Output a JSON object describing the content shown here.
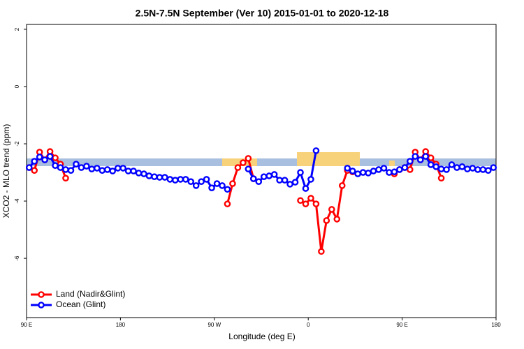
{
  "chart_data": {
    "type": "line",
    "title": "2.5N-7.5N September (Ver 10)   2015-01-01 to 2020-12-18",
    "x_label": "Longitude (deg E)",
    "y_label": "XCO2 - MLO trend (ppm)",
    "x": [
      92.5,
      97.5,
      102.5,
      107.5,
      112.5,
      117.5,
      122.5,
      127.5,
      132.5,
      137.5,
      142.5,
      147.5,
      152.5,
      157.5,
      162.5,
      167.5,
      172.5,
      177.5,
      182.5,
      187.5,
      192.5,
      197.5,
      202.5,
      207.5,
      212.5,
      217.5,
      222.5,
      227.5,
      232.5,
      237.5,
      242.5,
      247.5,
      252.5,
      257.5,
      262.5,
      267.5,
      272.5,
      277.5,
      282.5,
      287.5,
      292.5,
      297.5,
      302.5,
      307.5,
      312.5,
      317.5,
      322.5,
      327.5,
      332.5,
      337.5,
      342.5,
      347.5,
      352.5,
      357.5,
      362.5,
      367.5,
      372.5,
      377.5,
      382.5,
      387.5,
      392.5,
      397.5,
      402.5,
      407.5,
      412.5,
      417.5,
      422.5,
      427.5,
      432.5,
      437.5,
      442.5,
      447.5,
      452.5,
      457.5,
      462.5,
      467.5,
      472.5,
      477.5,
      482.5,
      487.5,
      492.5,
      497.5,
      502.5,
      507.5,
      512.5,
      517.5,
      522.5,
      527.5,
      532.5,
      537.5
    ],
    "series": [
      {
        "name": "Land (Nadir&Glint)",
        "color": "#ff0000",
        "values": [
          -2.83,
          -2.93,
          -2.29,
          -2.56,
          -2.27,
          -2.49,
          -2.71,
          -3.2,
          null,
          null,
          null,
          null,
          null,
          null,
          null,
          null,
          null,
          null,
          null,
          null,
          null,
          null,
          null,
          null,
          null,
          null,
          null,
          null,
          null,
          null,
          null,
          null,
          null,
          null,
          null,
          null,
          null,
          null,
          -4.1,
          -3.39,
          -2.83,
          -2.66,
          -2.51,
          -3.22,
          null,
          null,
          null,
          null,
          null,
          null,
          null,
          null,
          -3.98,
          -4.1,
          -3.9,
          -4.1,
          -5.76,
          -4.68,
          -4.29,
          -4.63,
          -3.46,
          -2.93,
          -2.98,
          null,
          null,
          null,
          null,
          null,
          null,
          null,
          -3.05,
          -2.9,
          -2.83,
          -2.9,
          -2.29,
          -2.56,
          -2.27,
          -2.49,
          -2.71,
          -3.2,
          null,
          null,
          null,
          null,
          null,
          null,
          null,
          null,
          null,
          null
        ]
      },
      {
        "name": "Ocean (Glint)",
        "color": "#0000ff",
        "values": [
          -2.83,
          -2.61,
          -2.46,
          -2.56,
          -2.44,
          -2.76,
          -2.83,
          -2.9,
          -2.93,
          -2.71,
          -2.83,
          -2.78,
          -2.88,
          -2.85,
          -2.93,
          -2.9,
          -2.95,
          -2.85,
          -2.85,
          -2.95,
          -2.95,
          -3.02,
          -3.05,
          -3.12,
          -3.15,
          -3.17,
          -3.17,
          -3.24,
          -3.27,
          -3.24,
          -3.24,
          -3.32,
          -3.46,
          -3.32,
          -3.24,
          -3.54,
          -3.39,
          -3.46,
          -3.59,
          null,
          null,
          null,
          -2.88,
          -3.22,
          -3.32,
          -3.15,
          -3.12,
          -3.07,
          -3.27,
          -3.27,
          -3.41,
          -3.34,
          -3.0,
          -3.56,
          -3.24,
          -2.24,
          null,
          null,
          null,
          null,
          null,
          -2.85,
          -2.95,
          -3.05,
          -3.0,
          -3.02,
          -2.95,
          -2.9,
          -2.85,
          -3.0,
          -2.98,
          -2.9,
          -2.83,
          -2.61,
          -2.44,
          -2.56,
          -2.44,
          -2.73,
          -2.8,
          -2.88,
          -2.9,
          -2.73,
          -2.83,
          -2.8,
          -2.88,
          -2.85,
          -2.9,
          -2.9,
          -2.93,
          -2.83
        ]
      }
    ],
    "xlim": [
      90,
      540
    ],
    "xticks": [
      {
        "value": 90,
        "label": "90 E"
      },
      {
        "value": 180,
        "label": "180"
      },
      {
        "value": 270,
        "label": "90 W"
      },
      {
        "value": 360,
        "label": "0"
      },
      {
        "value": 450,
        "label": "90 E"
      },
      {
        "value": 540,
        "label": "180"
      }
    ],
    "ylim": [
      -8.07,
      2.17
    ],
    "yticks": [
      2,
      0,
      -2,
      -4,
      -6
    ],
    "legend": "bottom-left"
  }
}
